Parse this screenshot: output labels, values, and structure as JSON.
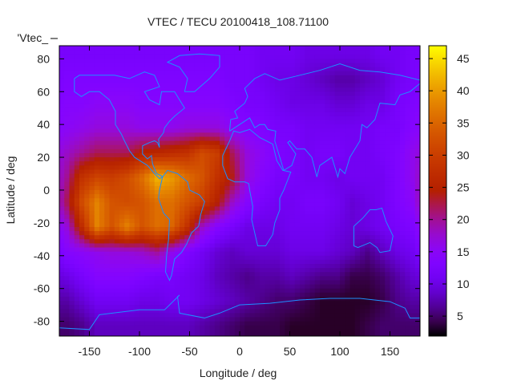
{
  "chart_data": {
    "type": "heatmap",
    "title": "VTEC / TECU 20100418_108.71100",
    "xlabel": "Longitude / deg",
    "ylabel": "Latitude / deg",
    "key_label": "'Vtec_",
    "xlim": [
      -180,
      180
    ],
    "ylim": [
      -89,
      88
    ],
    "xticks": [
      -150,
      -100,
      -50,
      0,
      50,
      100,
      150
    ],
    "yticks": [
      -80,
      -60,
      -40,
      -20,
      0,
      20,
      40,
      60,
      80
    ],
    "colorbar": {
      "range": [
        1.9,
        47
      ],
      "ticks": [
        5,
        10,
        15,
        20,
        25,
        30,
        35,
        40,
        45
      ],
      "palette": "black-blue-purple-red-orange-yellow"
    },
    "coastline_color": "#1e8fff",
    "grid_lon_centers": [
      -172.5,
      -157.5,
      -142.5,
      -127.5,
      -112.5,
      -97.5,
      -82.5,
      -67.5,
      -52.5,
      -37.5,
      -22.5,
      -7.5,
      7.5,
      22.5,
      37.5,
      52.5,
      67.5,
      82.5,
      97.5,
      112.5,
      127.5,
      142.5,
      157.5,
      172.5
    ],
    "grid_lat_centers": [
      82.5,
      67.5,
      52.5,
      37.5,
      22.5,
      7.5,
      -7.5,
      -22.5,
      -37.5,
      -52.5,
      -67.5,
      -82.5
    ],
    "values": [
      [
        12,
        12,
        12,
        12,
        12,
        12,
        12,
        12,
        12,
        12,
        12,
        12,
        12,
        11,
        11,
        11,
        10,
        10,
        10,
        10,
        10,
        11,
        11,
        12
      ],
      [
        13,
        13,
        13,
        13,
        13,
        13,
        13,
        13,
        13,
        13,
        13,
        12,
        12,
        11,
        10,
        10,
        9,
        8,
        7,
        7,
        8,
        9,
        11,
        12
      ],
      [
        14,
        14,
        15,
        15,
        15,
        14,
        14,
        14,
        14,
        14,
        14,
        13,
        12,
        12,
        11,
        10,
        10,
        10,
        9,
        9,
        10,
        10,
        12,
        13
      ],
      [
        15,
        16,
        17,
        17,
        17,
        16,
        16,
        16,
        17,
        17,
        17,
        15,
        14,
        13,
        12,
        12,
        11,
        11,
        11,
        11,
        11,
        12,
        12,
        14
      ],
      [
        18,
        20,
        22,
        22,
        22,
        25,
        26,
        27,
        28,
        32,
        30,
        22,
        17,
        15,
        13,
        12,
        11,
        12,
        12,
        11,
        11,
        12,
        13,
        16
      ],
      [
        20,
        28,
        31,
        30,
        32,
        36,
        42,
        40,
        36,
        33,
        28,
        24,
        17,
        14,
        12,
        12,
        11,
        11,
        10,
        11,
        11,
        11,
        13,
        16
      ],
      [
        22,
        32,
        38,
        33,
        32,
        33,
        36,
        36,
        33,
        30,
        25,
        18,
        14,
        12,
        11,
        11,
        12,
        12,
        11,
        9,
        10,
        11,
        13,
        15
      ],
      [
        17,
        27,
        38,
        33,
        38,
        33,
        36,
        35,
        28,
        18,
        14,
        12,
        10,
        10,
        10,
        11,
        11,
        11,
        10,
        9,
        10,
        11,
        12,
        13
      ],
      [
        14,
        15,
        16,
        17,
        17,
        18,
        20,
        16,
        13,
        11,
        9,
        8,
        9,
        9,
        9,
        10,
        10,
        10,
        9,
        8,
        6,
        8,
        10,
        11
      ],
      [
        10,
        12,
        14,
        14,
        14,
        13,
        12,
        12,
        11,
        10,
        8,
        7,
        6,
        7,
        7,
        8,
        7,
        6,
        6,
        4,
        4,
        5,
        7,
        9
      ],
      [
        7,
        9,
        11,
        11,
        11,
        10,
        10,
        11,
        11,
        10,
        9,
        8,
        7,
        6,
        5,
        5,
        4,
        3,
        3,
        3,
        3,
        4,
        6,
        7
      ],
      [
        5,
        6,
        8,
        8,
        8,
        8,
        8,
        8,
        8,
        7,
        6,
        5,
        4,
        4,
        4,
        3,
        3,
        3,
        3,
        3,
        4,
        5,
        5,
        5
      ]
    ]
  }
}
